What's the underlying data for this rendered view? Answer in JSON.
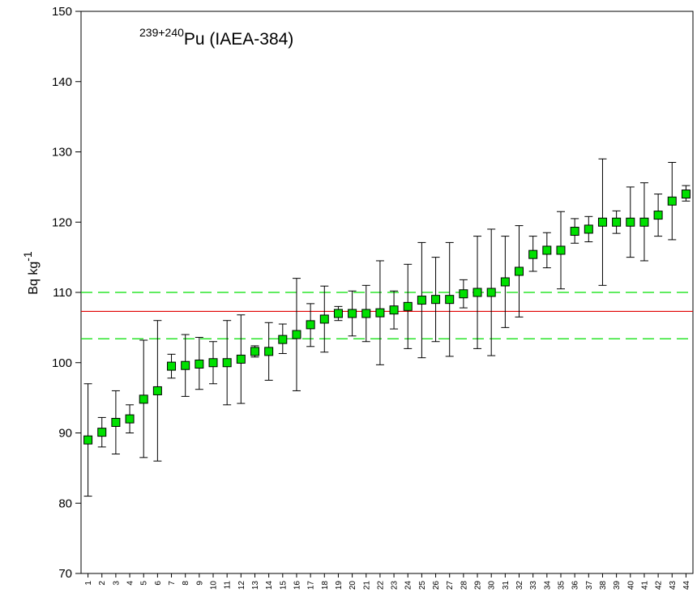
{
  "chart_data": {
    "type": "scatter",
    "title_superscript": "239+240",
    "title_main": "Pu (IAEA-384)",
    "ylabel_base": "Bq kg",
    "ylabel_exponent": "-1",
    "xlabel": "",
    "ylim": [
      70,
      150
    ],
    "yticks": [
      70,
      80,
      90,
      100,
      110,
      120,
      130,
      140,
      150
    ],
    "x": [
      1,
      2,
      3,
      4,
      5,
      6,
      7,
      8,
      9,
      10,
      11,
      12,
      13,
      14,
      15,
      16,
      17,
      18,
      19,
      20,
      21,
      22,
      23,
      24,
      25,
      26,
      27,
      28,
      29,
      30,
      31,
      32,
      33,
      34,
      35,
      36,
      37,
      38,
      39,
      40,
      41,
      42,
      43,
      44
    ],
    "series": [
      {
        "values": [
          89,
          90.1,
          91.5,
          92,
          94.8,
          96,
          99.5,
          99.6,
          99.8,
          100,
          100,
          100.5,
          101.6,
          101.6,
          103.3,
          104,
          105.4,
          106.2,
          107,
          107,
          107,
          107.1,
          107.5,
          108,
          108.9,
          109,
          109,
          109.8,
          110,
          110,
          111.5,
          113,
          115.4,
          116,
          116,
          118.7,
          119,
          120,
          120,
          120,
          120,
          121,
          123,
          124
        ],
        "error_low": [
          81,
          88,
          87,
          90,
          86.5,
          86,
          97.8,
          95.2,
          96.2,
          97,
          94,
          94.2,
          100.8,
          97.5,
          101.3,
          96,
          102.3,
          101.5,
          106,
          103.8,
          103,
          99.7,
          104.8,
          102,
          100.7,
          103,
          100.9,
          107.8,
          102,
          101,
          105,
          106.5,
          113,
          113.5,
          110.5,
          117,
          117.2,
          111,
          118.4,
          115,
          114.5,
          118,
          117.5,
          123
        ],
        "error_high": [
          97,
          92.2,
          96,
          94,
          103.2,
          106,
          101.2,
          104,
          103.6,
          103,
          106,
          106.8,
          102.4,
          105.7,
          105.5,
          112,
          108.4,
          110.9,
          108,
          110.2,
          111,
          114.5,
          110.2,
          114,
          117.1,
          115,
          117.1,
          111.8,
          118,
          119,
          118,
          119.5,
          118,
          118.5,
          121.5,
          120.5,
          120.8,
          129,
          121.6,
          125,
          125.6,
          124,
          128.5,
          125.2
        ]
      }
    ],
    "reference_value": 107.3,
    "reference_bounds": [
      103.4,
      110
    ],
    "colors": {
      "marker_fill": "#00e000",
      "marker_edge": "#000000",
      "reference_line": "#e00000",
      "bound_lines": "#00e000"
    },
    "grid": false
  }
}
